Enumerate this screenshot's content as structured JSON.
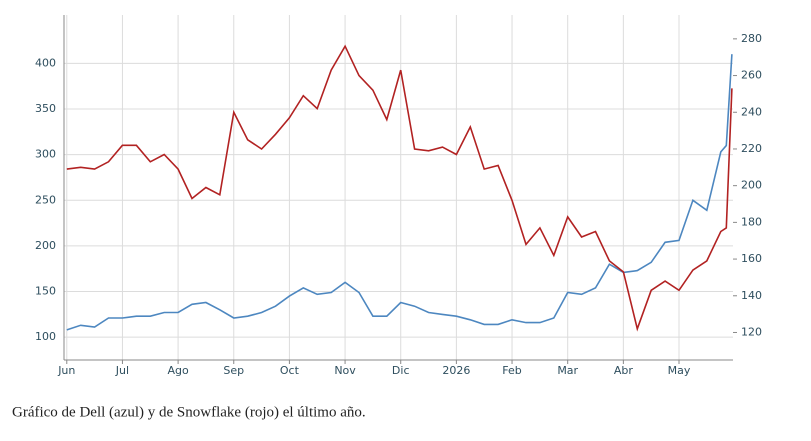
{
  "chart_data": {
    "type": "line",
    "caption": "Gráfico de Dell (azul) y de Snowflake (rojo) el último año.",
    "x": [
      0,
      0.25,
      0.5,
      0.75,
      1,
      1.25,
      1.5,
      1.75,
      2,
      2.25,
      2.5,
      2.75,
      3,
      3.25,
      3.5,
      3.75,
      4,
      4.25,
      4.5,
      4.75,
      5,
      5.25,
      5.5,
      5.75,
      6,
      6.25,
      6.5,
      6.75,
      7,
      7.25,
      7.5,
      7.75,
      8,
      8.25,
      8.5,
      8.75,
      9,
      9.25,
      9.5,
      9.75,
      10,
      10.25,
      10.5,
      10.75,
      11,
      11.25,
      11.5,
      11.75,
      11.85,
      11.95
    ],
    "xlim": [
      -0.05,
      11.97
    ],
    "xticks": [
      {
        "value": 0,
        "label": "Jun"
      },
      {
        "value": 1,
        "label": "Jul"
      },
      {
        "value": 2,
        "label": "Ago"
      },
      {
        "value": 3,
        "label": "Sep"
      },
      {
        "value": 4,
        "label": "Oct"
      },
      {
        "value": 5,
        "label": "Nov"
      },
      {
        "value": 6,
        "label": "Dic"
      },
      {
        "value": 7,
        "label": "2026"
      },
      {
        "value": 8,
        "label": "Feb"
      },
      {
        "value": 9,
        "label": "Mar"
      },
      {
        "value": 10,
        "label": "Abr"
      },
      {
        "value": 11,
        "label": "May"
      }
    ],
    "ylim": [
      75,
      453
    ],
    "yticks": [
      100,
      150,
      200,
      250,
      300,
      350,
      400
    ],
    "y2lim": [
      105,
      293
    ],
    "y2ticks": [
      120,
      140,
      160,
      180,
      200,
      220,
      240,
      260,
      280
    ],
    "grid": true,
    "series": [
      {
        "name": "Dell",
        "color": "#4d87c0",
        "values": [
          108,
          113,
          111,
          121,
          121,
          123,
          123,
          127,
          127,
          136,
          138,
          130,
          121,
          123,
          127,
          134,
          145,
          154,
          147,
          149,
          160,
          149,
          123,
          123,
          138,
          134,
          127,
          125,
          123,
          119,
          114,
          114,
          119,
          116,
          116,
          121,
          149,
          147,
          154,
          180,
          171,
          173,
          182,
          204,
          206,
          250,
          239,
          303,
          310,
          410
        ]
      },
      {
        "name": "Snowflake",
        "color": "#b22222",
        "axis": "y2",
        "values": [
          209,
          210,
          209,
          213,
          222,
          222,
          213,
          217,
          209,
          193,
          199,
          195,
          240,
          225,
          220,
          228,
          237,
          249,
          242,
          263,
          276,
          260,
          252,
          236,
          263,
          220,
          219,
          221,
          217,
          232,
          209,
          211,
          192,
          168,
          177,
          162,
          183,
          172,
          175,
          159,
          153,
          122,
          143,
          148,
          143,
          154,
          159,
          175,
          177,
          253
        ]
      }
    ]
  }
}
